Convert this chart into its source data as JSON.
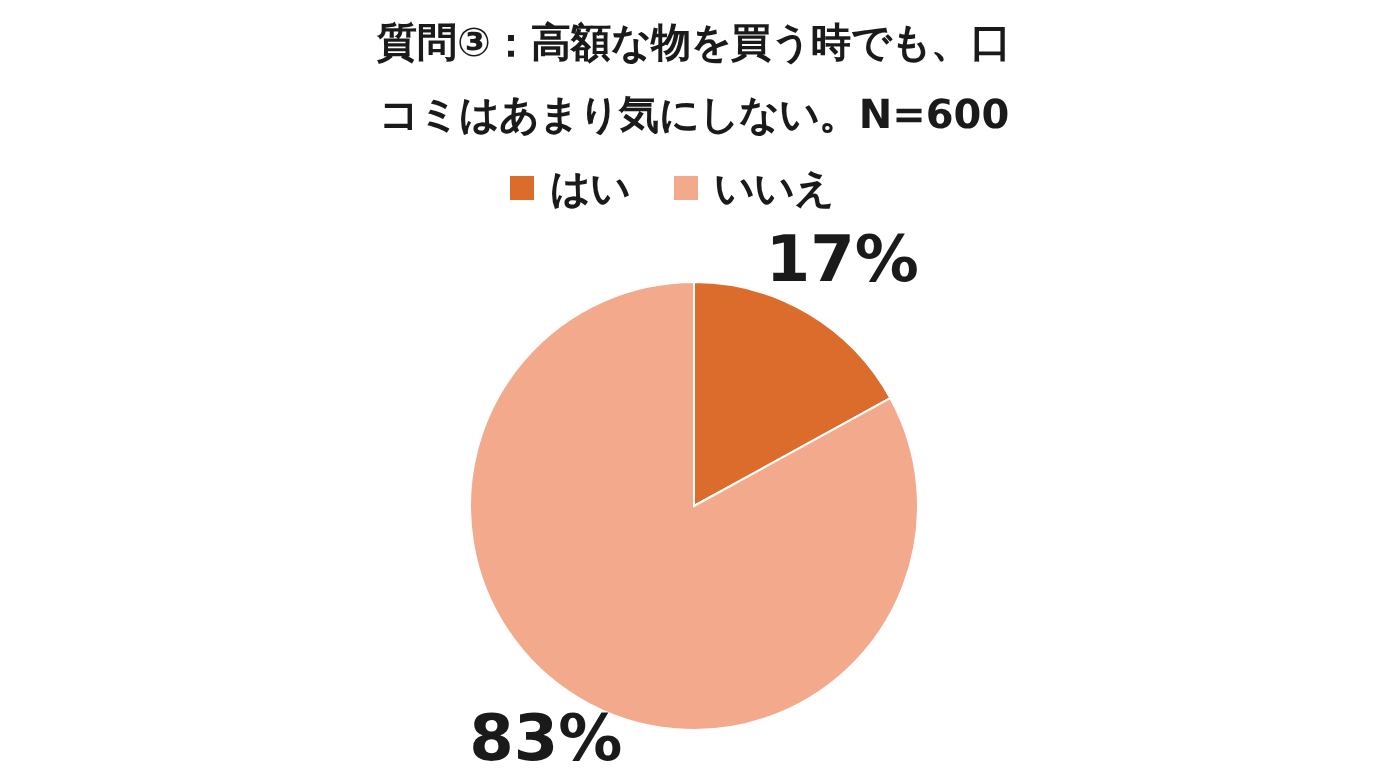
{
  "chart_data": {
    "type": "pie",
    "title": "質問③：高額な物を買う時でも、口コミはあまり気にしない。N=600",
    "categories": [
      "はい",
      "いいえ"
    ],
    "values": [
      17,
      83
    ],
    "colors": [
      "#dc6c2c",
      "#f3a98c"
    ],
    "value_labels": [
      "17%",
      "83%"
    ],
    "legend": "top"
  }
}
